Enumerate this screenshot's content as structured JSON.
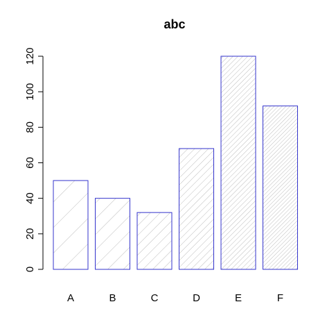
{
  "chart_data": {
    "type": "bar",
    "title": "abc",
    "xlabel": "",
    "ylabel": "",
    "categories": [
      "A",
      "B",
      "C",
      "D",
      "E",
      "F"
    ],
    "values": [
      50,
      40,
      32,
      68,
      120,
      92
    ],
    "ylim": [
      0,
      120
    ],
    "yticks": [
      0,
      20,
      40,
      60,
      80,
      100,
      120
    ],
    "grid": false,
    "bar_border_color": "#3333cc",
    "bar_fill_color": "#d9d9d9",
    "hatch_color": "#bdbdbd",
    "hatch": "diagonal"
  }
}
